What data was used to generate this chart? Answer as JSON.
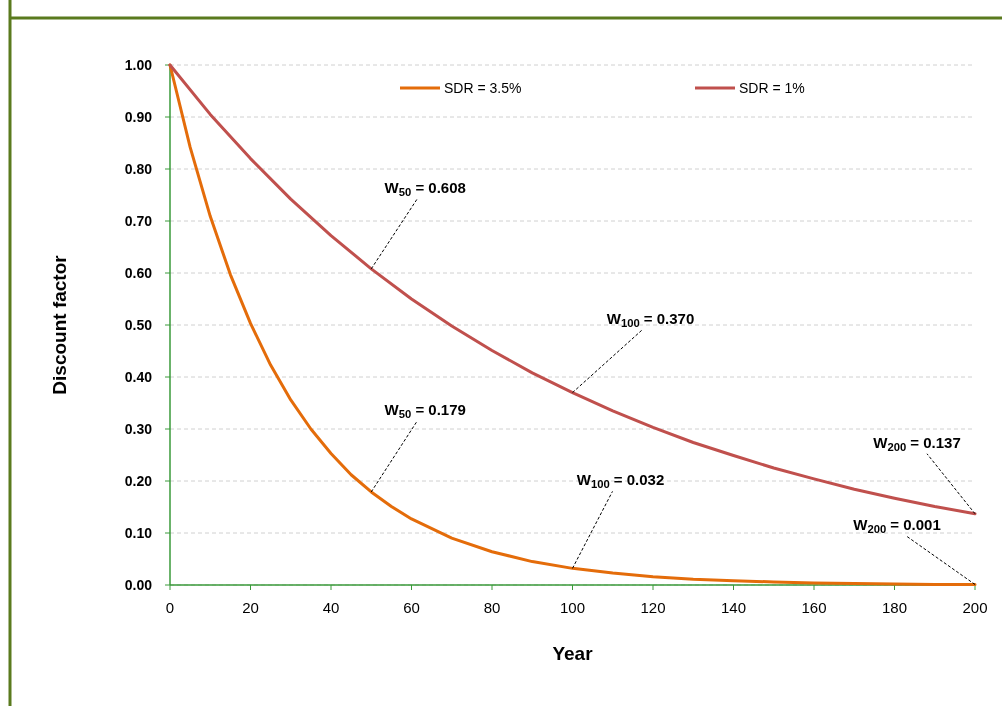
{
  "chart_data": {
    "type": "line",
    "xlabel": "Year",
    "ylabel": "Discount factor",
    "series": [
      {
        "name": "SDR = 3.5%",
        "color": "#e46c0a",
        "x": [
          0,
          5,
          10,
          15,
          20,
          25,
          30,
          35,
          40,
          45,
          50,
          55,
          60,
          70,
          80,
          90,
          100,
          110,
          120,
          130,
          140,
          150,
          160,
          170,
          180,
          190,
          200
        ],
        "values": [
          1,
          0.842,
          0.709,
          0.597,
          0.503,
          0.423,
          0.356,
          0.3,
          0.253,
          0.212,
          0.179,
          0.151,
          0.127,
          0.09,
          0.064,
          0.045,
          0.032,
          0.023,
          0.016,
          0.011,
          0.008,
          0.006,
          0.004,
          0.003,
          0.002,
          0.001,
          0.001
        ]
      },
      {
        "name": "SDR = 1%",
        "color": "#c0504d",
        "x": [
          0,
          10,
          20,
          30,
          40,
          50,
          60,
          70,
          80,
          90,
          100,
          110,
          120,
          130,
          140,
          150,
          160,
          170,
          180,
          190,
          200
        ],
        "values": [
          1,
          0.905,
          0.82,
          0.742,
          0.672,
          0.608,
          0.55,
          0.498,
          0.451,
          0.408,
          0.37,
          0.335,
          0.303,
          0.274,
          0.249,
          0.225,
          0.204,
          0.184,
          0.167,
          0.151,
          0.137
        ]
      }
    ],
    "xlim": [
      0,
      200
    ],
    "xticks": [
      0,
      20,
      40,
      60,
      80,
      100,
      120,
      140,
      160,
      180,
      200
    ],
    "ylim": [
      0,
      1
    ],
    "yticks": [
      {
        "value": 0,
        "label": "0.00"
      },
      {
        "value": 0.1,
        "label": "0.10"
      },
      {
        "value": 0.2,
        "label": "0.20"
      },
      {
        "value": 0.3,
        "label": "0.30"
      },
      {
        "value": 0.4,
        "label": "0.40"
      },
      {
        "value": 0.5,
        "label": "0.50"
      },
      {
        "value": 0.6,
        "label": "0.60"
      },
      {
        "value": 0.7,
        "label": "0.70"
      },
      {
        "value": 0.8,
        "label": "0.80"
      },
      {
        "value": 0.9,
        "label": "0.90"
      },
      {
        "value": 1,
        "label": "1.00"
      }
    ],
    "grid": "y",
    "legend": "top",
    "marker": "none",
    "line_style": "solid",
    "annotations": [
      {
        "text": "W$_{50}$ = 0.608",
        "x": 50,
        "y": 0.608
      },
      {
        "text": "W$_{100}$ = 0.370",
        "x": 100,
        "y": 0.37
      },
      {
        "text": "W$_{200}$ = 0.137",
        "x": 200,
        "y": 0.137
      },
      {
        "text": "W$_{50}$ = 0.179",
        "x": 50,
        "y": 0.179
      },
      {
        "text": "W$_{100}$ = 0.032",
        "x": 100,
        "y": 0.032
      },
      {
        "text": "W$_{200}$ = 0.001",
        "x": 200,
        "y": 0.001
      }
    ]
  }
}
